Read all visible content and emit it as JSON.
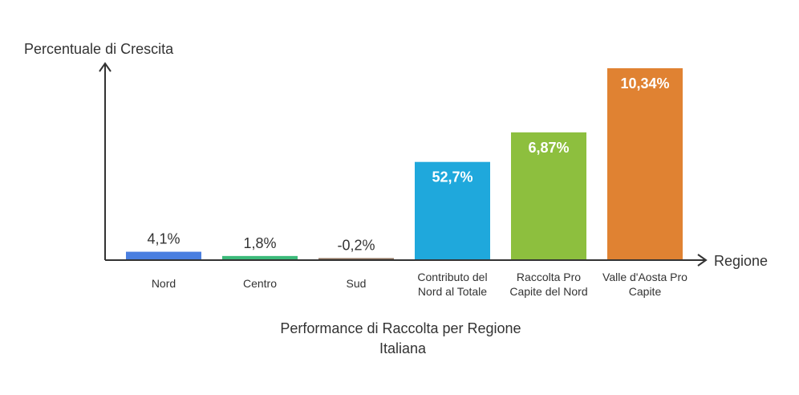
{
  "chart_data": {
    "type": "bar",
    "categories": [
      [
        "Nord"
      ],
      [
        "Centro"
      ],
      [
        "Sud"
      ],
      [
        "Contributo del",
        "Nord al Totale"
      ],
      [
        "Raccolta Pro",
        "Capite del Nord"
      ],
      [
        "Valle d'Aosta Pro",
        "Capite"
      ]
    ],
    "bar_heights_visual": [
      4.1,
      1.8,
      0.3,
      52.7,
      68.7,
      103.4
    ],
    "value_labels": [
      "4,1%",
      "1,8%",
      "-0,2%",
      "52,7%",
      "6,87%",
      "10,34%"
    ],
    "values": [
      4.1,
      1.8,
      -0.2,
      52.7,
      6.87,
      10.34
    ],
    "colors": [
      "#4a7fe0",
      "#3cba7a",
      "#8b6f5a",
      "#1fa8dc",
      "#8dbf3e",
      "#e08232"
    ],
    "label_inside": [
      false,
      false,
      false,
      true,
      true,
      true
    ],
    "ylabel": "Percentuale di Crescita",
    "xlabel": "Regione",
    "title": [
      "Performance di Raccolta per Regione",
      "Italiana"
    ],
    "grid": false,
    "legend": "none"
  }
}
